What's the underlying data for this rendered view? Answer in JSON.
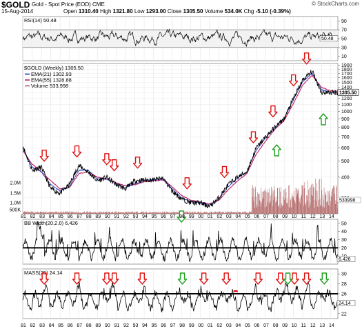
{
  "header": {
    "symbol": "$GOLD",
    "description": "Gold - Spot Price (EOD) CME",
    "watermark": "© StockCharts.com",
    "date": "15-Aug-2014",
    "open_label": "Open",
    "open": "1310.40",
    "high_label": "High",
    "high": "1321.80",
    "low_label": "Low",
    "low": "1293.00",
    "close_label": "Close",
    "close": "1305.50",
    "volume_label": "Volume",
    "volume": "534.0K",
    "chg_label": "Chg",
    "chg": "-5.10 (-0.39%)"
  },
  "colors": {
    "price": "#000000",
    "ema21": "#2040c0",
    "ema55": "#c0205a",
    "volume": "#b06060",
    "arrow_red": "#e01010",
    "arrow_green": "#20a020",
    "rsi_band": "#d0d0d0"
  },
  "chart_data": [
    {
      "type": "line",
      "panel": "rsi",
      "title": "RSI(14) 50.48",
      "value_label": "50.48",
      "ticks": [
        "90",
        "70",
        "50",
        "30",
        "10"
      ],
      "ylim": [
        0,
        100
      ],
      "reference_levels": [
        70,
        30
      ],
      "last": 50.48
    },
    {
      "type": "line",
      "panel": "price",
      "title": "$GOLD (Weekly) 1305.50",
      "legend": [
        {
          "name": "EMA(21) 1302.93",
          "color": "#2040c0"
        },
        {
          "name": "EMA(55) 1328.88",
          "color": "#c0205a"
        },
        {
          "name": "Volume 533,998",
          "color": "#b06060"
        }
      ],
      "price_label": "1305.50",
      "volume_label": "533998",
      "yticks": [
        "1900",
        "1800",
        "1700",
        "1600",
        "1500",
        "1400",
        "1300",
        "1200",
        "1100",
        "1000",
        "900",
        "800",
        "700",
        "600",
        "500",
        "400",
        "300"
      ],
      "log_scale": true,
      "ylim": [
        240,
        1950
      ],
      "volume_ticks": [
        "2.0M",
        "1.5M",
        "1.0M",
        "500K"
      ],
      "x": [
        1981,
        1982,
        1983,
        1984,
        1985,
        1986,
        1987,
        1988,
        1989,
        1990,
        1991,
        1992,
        1993,
        1994,
        1995,
        1996,
        1997,
        1998,
        1999,
        2000,
        2001,
        2002,
        2003,
        2004,
        2005,
        2006,
        2007,
        2008,
        2009,
        2010,
        2011,
        2012,
        2013,
        2014
      ],
      "series": [
        {
          "name": "$GOLD",
          "values": [
            620,
            440,
            460,
            340,
            320,
            360,
            470,
            430,
            380,
            400,
            360,
            340,
            380,
            385,
            385,
            395,
            330,
            295,
            280,
            280,
            265,
            300,
            360,
            400,
            430,
            600,
            700,
            800,
            900,
            1200,
            1550,
            1750,
            1300,
            1300
          ]
        },
        {
          "name": "EMA(21)",
          "values": [
            600,
            460,
            430,
            360,
            330,
            350,
            440,
            440,
            390,
            390,
            365,
            345,
            365,
            380,
            385,
            390,
            340,
            300,
            285,
            280,
            270,
            295,
            350,
            395,
            430,
            580,
            690,
            800,
            910,
            1180,
            1520,
            1700,
            1350,
            1303
          ]
        },
        {
          "name": "EMA(55)",
          "values": [
            580,
            480,
            430,
            380,
            340,
            345,
            420,
            430,
            400,
            390,
            370,
            355,
            360,
            375,
            380,
            385,
            350,
            310,
            290,
            282,
            275,
            290,
            335,
            380,
            420,
            550,
            660,
            780,
            880,
            1120,
            1450,
            1650,
            1400,
            1329
          ]
        }
      ],
      "arrows_red": [
        1983.3,
        1986.8,
        1990.0,
        1990.8,
        1993.3,
        1998.6,
        2002.6,
        2005.7,
        2007.8,
        2010.0,
        2011.4
      ],
      "arrows_green": [
        2008.2,
        2013.2
      ],
      "arrow_below": [
        1998.0
      ]
    },
    {
      "type": "line",
      "panel": "bbwidth",
      "title": "BB Width(20,2.0) 6.426",
      "value_label": "6.426",
      "ticks": [
        "50",
        "40",
        "30",
        "20",
        "10"
      ],
      "ylim": [
        0,
        55
      ],
      "reference_levels": [
        20
      ]
    },
    {
      "type": "line",
      "panel": "mass",
      "title": "MASS(25) 24.14",
      "value_label": "24.14",
      "ticks": [
        "30",
        "28",
        "26",
        "24",
        "22"
      ],
      "ylim": [
        21,
        31
      ],
      "reference_levels": [
        26
      ],
      "arrows_red": [
        1983.3,
        1986.8,
        1990.0,
        1990.8,
        1993.8,
        2000.4,
        2002.8,
        2006.2,
        2008.6,
        2010.1,
        2011.4
      ],
      "arrows_green": [
        1998.1,
        2009.4,
        2013.3
      ]
    }
  ],
  "xaxis": {
    "labels": [
      "81",
      "82",
      "83",
      "84",
      "85",
      "86",
      "87",
      "88",
      "89",
      "90",
      "91",
      "92",
      "93",
      "94",
      "95",
      "96",
      "97",
      "98",
      "99",
      "00",
      "01",
      "02",
      "03",
      "04",
      "05",
      "06",
      "07",
      "08",
      "09",
      "10",
      "11",
      "12",
      "13",
      "14"
    ]
  }
}
